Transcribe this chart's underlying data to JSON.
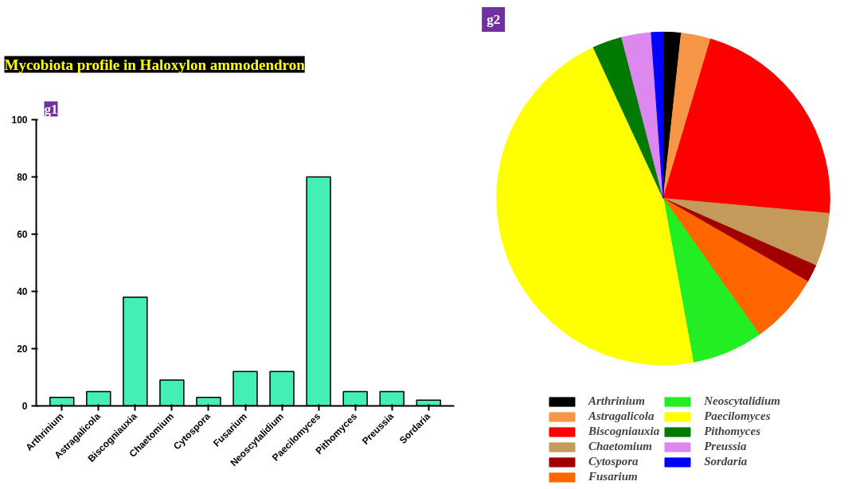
{
  "chart_data": [
    {
      "type": "bar",
      "title": "Mycobiota profile in Haloxylon ammodendron",
      "annotations": [
        "g1"
      ],
      "categories": [
        "Arthrinium",
        "Astragalicola",
        "Biscogniauxia",
        "Chaetomium",
        "Cytospora",
        "Fusarium",
        "Neoscytalidium",
        "Paecilomyces",
        "Pithomyces",
        "Preussia",
        "Sordaria"
      ],
      "values": [
        3,
        5,
        38,
        9,
        3,
        12,
        12,
        80,
        5,
        5,
        2
      ],
      "color": "#44efb5",
      "ylim": [
        0,
        100
      ],
      "yticks": [
        0,
        20,
        40,
        60,
        80,
        100
      ],
      "grid": false
    },
    {
      "type": "pie",
      "annotations": [
        "g2"
      ],
      "legend": "bottom",
      "categories": [
        "Arthrinium",
        "Astragalicola",
        "Biscogniauxia",
        "Chaetomium",
        "Cytospora",
        "Fusarium",
        "Neoscytalidium",
        "Paecilomyces",
        "Pithomyces",
        "Preussia",
        "Sordaria"
      ],
      "values": [
        1.72,
        2.87,
        21.84,
        5.17,
        1.72,
        6.9,
        6.9,
        45.99,
        2.87,
        2.87,
        1.15
      ],
      "colors": [
        "#000000",
        "#f79646",
        "#ff0000",
        "#c49a5a",
        "#a00000",
        "#ff6600",
        "#22ee22",
        "#ffff00",
        "#007a00",
        "#dd88ee",
        "#0000ff"
      ]
    }
  ]
}
